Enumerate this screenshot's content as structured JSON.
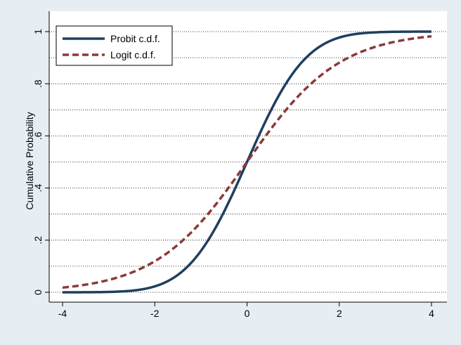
{
  "chart_data": {
    "type": "line",
    "title": "",
    "xlabel": "",
    "ylabel": "Cumulative Probability",
    "xlim": [
      -4,
      4
    ],
    "ylim": [
      0,
      1
    ],
    "xticks": [
      -4,
      -2,
      0,
      2,
      4
    ],
    "xtick_labels": [
      "-4",
      "-2",
      "0",
      "2",
      "4"
    ],
    "yticks": [
      0,
      0.2,
      0.4,
      0.6,
      0.8,
      1
    ],
    "ytick_labels": [
      "0",
      ".2",
      ".4",
      ".6",
      ".8",
      "1"
    ],
    "grid": "horizontal dotted every 0.1",
    "legend_position": "top-left",
    "x": [
      -4,
      -3.5,
      -3,
      -2.5,
      -2,
      -1.5,
      -1,
      -0.5,
      0,
      0.5,
      1,
      1.5,
      2,
      2.5,
      3,
      3.5,
      4
    ],
    "series": [
      {
        "name": "Probit c.d.f.",
        "color": "#1f3f5f",
        "style": "solid",
        "values": [
          0.0,
          0.0002,
          0.0013,
          0.0062,
          0.0228,
          0.0668,
          0.1587,
          0.3085,
          0.5,
          0.6915,
          0.8413,
          0.9332,
          0.9772,
          0.9938,
          0.9987,
          0.9998,
          1.0
        ]
      },
      {
        "name": "Logit c.d.f.",
        "color": "#8b3a3a",
        "style": "dashed",
        "values": [
          0.018,
          0.029,
          0.047,
          0.076,
          0.119,
          0.182,
          0.269,
          0.378,
          0.5,
          0.622,
          0.731,
          0.818,
          0.881,
          0.924,
          0.953,
          0.971,
          0.982
        ]
      }
    ]
  },
  "colors": {
    "frame_background": "#e6eef3",
    "plot_background": "#ffffff",
    "grid": "#000000",
    "axis": "#000000"
  }
}
